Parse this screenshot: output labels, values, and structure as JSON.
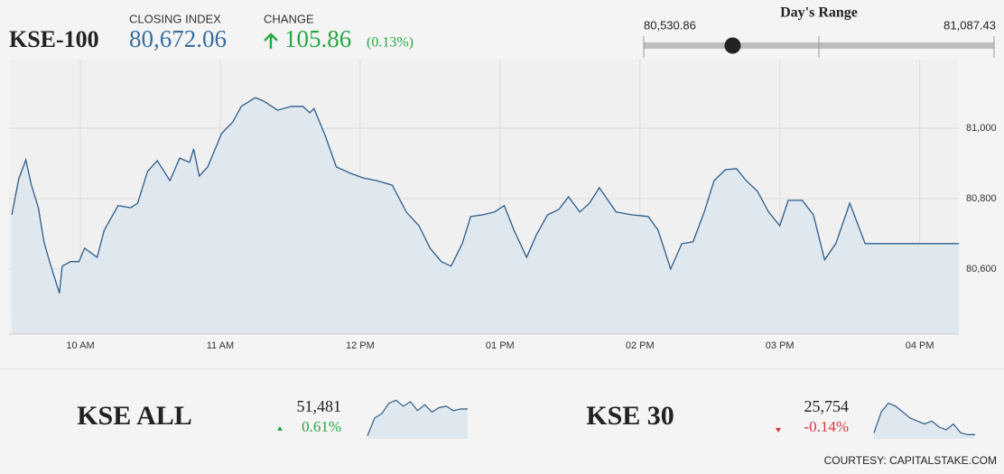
{
  "header": {
    "name": "KSE-100",
    "closing_label": "CLOSING INDEX",
    "closing": {
      "value": 80672.06,
      "label": "80,672.06"
    },
    "change_label": "CHANGE",
    "change": 105.86,
    "change_pct": "(0.13%)",
    "range_label": "Day's Range",
    "range_low": {
      "value": 80530.86,
      "label": "80,530.86"
    },
    "range_high": {
      "value": 81087.43,
      "label": "81,087.43"
    }
  },
  "chart_data": {
    "type": "line",
    "color": "#2e5d88",
    "fill": "#dfe7ef",
    "grid": true,
    "x": [
      9.51,
      9.56,
      9.61,
      9.65,
      9.7,
      9.74,
      9.78,
      9.85,
      9.87,
      9.93,
      9.99,
      10.03,
      10.12,
      10.17,
      10.27,
      10.36,
      10.41,
      10.48,
      10.55,
      10.64,
      10.71,
      10.78,
      10.81,
      10.85,
      10.91,
      11.01,
      11.09,
      11.15,
      11.25,
      11.31,
      11.41,
      11.51,
      11.59,
      11.64,
      11.67,
      11.75,
      11.83,
      11.93,
      12.02,
      12.12,
      12.23,
      12.33,
      12.42,
      12.5,
      12.58,
      12.65,
      12.73,
      12.79,
      12.88,
      12.96,
      13.03,
      13.1,
      13.19,
      13.26,
      13.34,
      13.42,
      13.49,
      13.57,
      13.64,
      13.71,
      13.83,
      13.94,
      14.06,
      14.13,
      14.22,
      14.3,
      14.38,
      14.46,
      14.53,
      14.61,
      14.69,
      14.76,
      14.84,
      14.92,
      15.0,
      15.06,
      15.16,
      15.24,
      15.32,
      15.4,
      15.5,
      15.61,
      16.28
    ],
    "values": [
      80754,
      80856,
      80910,
      80838,
      80774,
      80677,
      80621,
      80531,
      80608,
      80621,
      80621,
      80659,
      80633,
      80710,
      80780,
      80774,
      80787,
      80877,
      80908,
      80851,
      80915,
      80903,
      80941,
      80864,
      80890,
      80985,
      81018,
      81062,
      81087,
      81077,
      81051,
      81062,
      81062,
      81044,
      81056,
      80979,
      80890,
      80872,
      80859,
      80851,
      80838,
      80762,
      80723,
      80659,
      80621,
      80608,
      80672,
      80749,
      80754,
      80762,
      80780,
      80710,
      80633,
      80697,
      80754,
      80769,
      80805,
      80762,
      80787,
      80831,
      80762,
      80754,
      80749,
      80710,
      80600,
      80672,
      80677,
      80762,
      80851,
      80882,
      80885,
      80851,
      80821,
      80762,
      80723,
      80795,
      80795,
      80754,
      80626,
      80672,
      80787,
      80672,
      80672
    ],
    "xlim": [
      9.49,
      16.28
    ],
    "xticks": [
      {
        "value": 10,
        "label": "10 AM"
      },
      {
        "value": 11,
        "label": "11 AM"
      },
      {
        "value": 12,
        "label": "12 PM"
      },
      {
        "value": 13,
        "label": "01 PM"
      },
      {
        "value": 14,
        "label": "02 PM"
      },
      {
        "value": 15,
        "label": "03 PM"
      },
      {
        "value": 16,
        "label": "04 PM"
      }
    ],
    "ylim": [
      80415,
      81195
    ],
    "yticks": [
      {
        "value": 80600,
        "label": "80,600"
      },
      {
        "value": 80800,
        "label": "80,800"
      },
      {
        "value": 81000,
        "label": "81,000"
      }
    ]
  },
  "indices": [
    {
      "name": "KSE ALL",
      "value": "51,481",
      "change": "0.61%",
      "color": "#2e5d88",
      "values": [
        51300,
        51420,
        51450,
        51520,
        51540,
        51500,
        51530,
        51470,
        51510,
        51460,
        51490,
        51500,
        51470,
        51481,
        51481
      ],
      "ylim": [
        51280,
        51560
      ]
    },
    {
      "name": "KSE 30",
      "value": "25,754",
      "change": "-0.14%",
      "color": "#2e5d88",
      "values": [
        25760,
        25830,
        25860,
        25850,
        25830,
        25810,
        25800,
        25790,
        25800,
        25780,
        25770,
        25790,
        25760,
        25754,
        25754
      ],
      "ylim": [
        25740,
        25880
      ]
    }
  ],
  "footer": "COURTESY: CAPITALSTAKE.COM"
}
